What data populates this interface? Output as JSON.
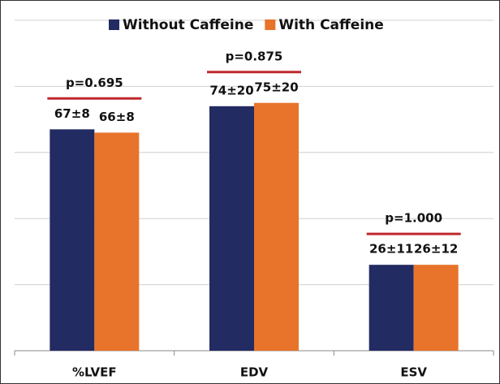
{
  "chart_data": {
    "type": "bar",
    "categories": [
      "%LVEF",
      "EDV",
      "ESV"
    ],
    "series": [
      {
        "name": "Without Caffeine",
        "color": "#232b63",
        "values": [
          67,
          74,
          26
        ],
        "value_labels": [
          "67±8",
          "74±20",
          "26±11"
        ]
      },
      {
        "name": "With Caffeine",
        "color": "#e8732a",
        "values": [
          66,
          75,
          26
        ],
        "value_labels": [
          "66±8",
          "75±20",
          "26±12"
        ]
      }
    ],
    "annotations": [
      "p=0.695",
      "p=0.875",
      "p=1.000"
    ],
    "annotation_color": "#c0282d",
    "ylim": [
      0,
      100
    ],
    "yticks": [
      0,
      20,
      40,
      60,
      80,
      100
    ],
    "grid": true
  }
}
